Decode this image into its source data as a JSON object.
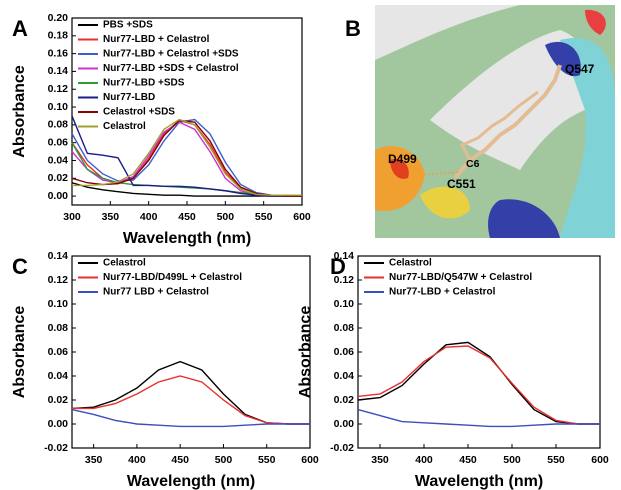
{
  "chart_data": [
    {
      "type": "line",
      "panel_label": "A",
      "x_label": "Wavelength (nm)",
      "y_label": "Absorbance",
      "x": [
        300,
        320,
        340,
        360,
        380,
        400,
        420,
        440,
        460,
        480,
        500,
        520,
        540,
        560,
        580,
        600
      ],
      "xlim": [
        300,
        600
      ],
      "xticks": [
        300,
        350,
        400,
        450,
        500,
        550,
        600
      ],
      "ylim": [
        -0.01,
        0.2
      ],
      "yticks": [
        {
          "value": 0,
          "label": "0.00"
        },
        {
          "value": 0.02,
          "label": "0.02"
        },
        {
          "value": 0.04,
          "label": "0.04"
        },
        {
          "value": 0.06,
          "label": "0.06"
        },
        {
          "value": 0.08,
          "label": "0.08"
        },
        {
          "value": 0.1,
          "label": "0.10"
        },
        {
          "value": 0.12,
          "label": "0.12"
        },
        {
          "value": 0.14,
          "label": "0.14"
        },
        {
          "value": 0.16,
          "label": "0.16"
        },
        {
          "value": 0.18,
          "label": "0.18"
        },
        {
          "value": 0.2,
          "label": "0.20"
        }
      ],
      "legend": "upper left",
      "series": [
        {
          "name": "PBS +SDS",
          "color": "#000000",
          "values": [
            0.015,
            0.01,
            0.007,
            0.005,
            0.003,
            0.002,
            0.001,
            0.001,
            0,
            0,
            0,
            0,
            0,
            0,
            0,
            0
          ]
        },
        {
          "name": "Nur77-LBD + Celastrol",
          "color": "#e8302c",
          "values": [
            0.06,
            0.035,
            0.02,
            0.015,
            0.02,
            0.042,
            0.07,
            0.085,
            0.08,
            0.058,
            0.027,
            0.009,
            0.002,
            0.001,
            0,
            0
          ]
        },
        {
          "name": "Nur77-LBD + Celastrol +SDS",
          "color": "#3a5fcd",
          "values": [
            0.07,
            0.04,
            0.025,
            0.017,
            0.018,
            0.035,
            0.062,
            0.083,
            0.086,
            0.07,
            0.038,
            0.013,
            0.004,
            0.001,
            0,
            0
          ]
        },
        {
          "name": "Nur77-LBD +SDS + Celastrol",
          "color": "#cc33cc",
          "values": [
            0.05,
            0.03,
            0.018,
            0.015,
            0.022,
            0.045,
            0.072,
            0.083,
            0.075,
            0.05,
            0.02,
            0.006,
            0.001,
            0,
            0,
            0
          ]
        },
        {
          "name": "Nur77-LBD +SDS",
          "color": "#2e9a3a",
          "values": [
            0.06,
            0.03,
            0.02,
            0.015,
            0.013,
            0.012,
            0.011,
            0.01,
            0.009,
            0.008,
            0.006,
            0.004,
            0.002,
            0.001,
            0,
            0
          ]
        },
        {
          "name": "Nur77-LBD",
          "color": "#1c1c8a",
          "values": [
            0.09,
            0.048,
            0.046,
            0.043,
            0.012,
            0.012,
            0.011,
            0.011,
            0.01,
            0.008,
            0.006,
            0.003,
            0.001,
            0,
            0,
            0
          ]
        },
        {
          "name": "Celastrol +SDS",
          "color": "#8b0000",
          "values": [
            0.02,
            0.015,
            0.013,
            0.014,
            0.02,
            0.04,
            0.068,
            0.085,
            0.083,
            0.062,
            0.03,
            0.01,
            0.003,
            0.001,
            0,
            0
          ]
        },
        {
          "name": "Celastrol",
          "color": "#a0a030",
          "values": [
            0.012,
            0.012,
            0.013,
            0.016,
            0.025,
            0.048,
            0.075,
            0.086,
            0.08,
            0.055,
            0.025,
            0.008,
            0.002,
            0.001,
            0.001,
            0.001
          ]
        }
      ]
    },
    {
      "type": "line",
      "panel_label": "C",
      "x_label": "Wavelength (nm)",
      "y_label": "Absorbance",
      "x": [
        325,
        350,
        375,
        400,
        425,
        450,
        475,
        500,
        525,
        550,
        575,
        600
      ],
      "xlim": [
        325,
        600
      ],
      "xticks": [
        350,
        400,
        450,
        500,
        550,
        600
      ],
      "ylim": [
        -0.02,
        0.14
      ],
      "yticks": [
        {
          "value": -0.02,
          "label": "-0.02"
        },
        {
          "value": 0,
          "label": "0.00"
        },
        {
          "value": 0.02,
          "label": "0.02"
        },
        {
          "value": 0.04,
          "label": "0.04"
        },
        {
          "value": 0.06,
          "label": "0.06"
        },
        {
          "value": 0.08,
          "label": "0.08"
        },
        {
          "value": 0.1,
          "label": "0.10"
        },
        {
          "value": 0.12,
          "label": "0.12"
        },
        {
          "value": 0.14,
          "label": "0.14"
        }
      ],
      "legend": "upper left",
      "series": [
        {
          "name": "Celastrol",
          "color": "#000000",
          "values": [
            0.013,
            0.014,
            0.02,
            0.03,
            0.045,
            0.052,
            0.045,
            0.025,
            0.008,
            0.001,
            0,
            0
          ]
        },
        {
          "name": "Nur77-LBD/D499L + Celastrol",
          "color": "#e8302c",
          "values": [
            0.013,
            0.013,
            0.017,
            0.025,
            0.035,
            0.04,
            0.035,
            0.02,
            0.007,
            0.001,
            0,
            0
          ]
        },
        {
          "name": "Nur77 LBD + Celastrol",
          "color": "#3a4fc0",
          "values": [
            0.012,
            0.008,
            0.003,
            0,
            -0.001,
            -0.002,
            -0.002,
            -0.002,
            -0.001,
            0,
            0,
            0
          ]
        }
      ]
    },
    {
      "type": "line",
      "panel_label": "D",
      "x_label": "Wavelength (nm)",
      "y_label": "Absorbance",
      "x": [
        325,
        350,
        375,
        400,
        425,
        450,
        475,
        500,
        525,
        550,
        575,
        600
      ],
      "xlim": [
        325,
        600
      ],
      "xticks": [
        350,
        400,
        450,
        500,
        550,
        600
      ],
      "ylim": [
        -0.02,
        0.14
      ],
      "yticks": [
        {
          "value": -0.02,
          "label": "-0.02"
        },
        {
          "value": 0,
          "label": "0.00"
        },
        {
          "value": 0.02,
          "label": "0.02"
        },
        {
          "value": 0.04,
          "label": "0.04"
        },
        {
          "value": 0.06,
          "label": "0.06"
        },
        {
          "value": 0.08,
          "label": "0.08"
        },
        {
          "value": 0.1,
          "label": "0.10"
        },
        {
          "value": 0.12,
          "label": "0.12"
        },
        {
          "value": 0.14,
          "label": "0.14"
        }
      ],
      "legend": "upper left",
      "series": [
        {
          "name": "Celastrol",
          "color": "#000000",
          "values": [
            0.02,
            0.022,
            0.032,
            0.05,
            0.066,
            0.068,
            0.056,
            0.033,
            0.012,
            0.002,
            0,
            0
          ]
        },
        {
          "name": "Nur77-LBD/Q547W + Celastrol",
          "color": "#e8302c",
          "values": [
            0.023,
            0.025,
            0.035,
            0.052,
            0.064,
            0.065,
            0.055,
            0.034,
            0.014,
            0.003,
            0,
            0
          ]
        },
        {
          "name": "Nur77-LBD + Celastrol",
          "color": "#3a4fc0",
          "values": [
            0.012,
            0.007,
            0.002,
            0.001,
            0,
            -0.001,
            -0.002,
            -0.002,
            -0.001,
            0,
            0,
            0
          ]
        }
      ]
    }
  ],
  "structure_panel": {
    "panel_label": "B",
    "residue_labels": [
      "Q547",
      "D499",
      "C551",
      "C6"
    ]
  }
}
